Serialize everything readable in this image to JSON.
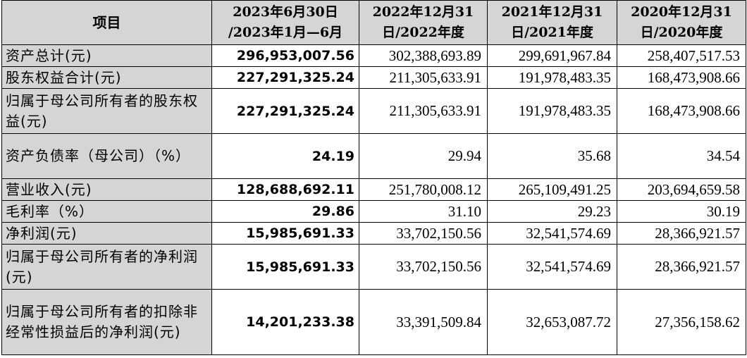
{
  "header": {
    "item": "项目",
    "col1_line1": "2023年6月30日",
    "col1_line2": "/2023年1月—6月",
    "col2_line1": "2022年12月31",
    "col2_line2": "日/2022年度",
    "col3_line1": "2021年12月31",
    "col3_line2": "日/2021年度",
    "col4_line1": "2020年12月31",
    "col4_line2": "日/2020年度"
  },
  "rows": [
    {
      "label": "资产总计(元)",
      "values": [
        "296,953,007.56",
        "302,388,693.89",
        "299,691,967.84",
        "258,407,517.53"
      ]
    },
    {
      "label": "股东权益合计(元)",
      "values": [
        "227,291,325.24",
        "211,305,633.91",
        "191,978,483.35",
        "168,473,908.66"
      ]
    },
    {
      "label": "归属于母公司所有者的股东权益(元)",
      "values": [
        "227,291,325.24",
        "211,305,633.91",
        "191,978,483.35",
        "168,473,908.66"
      ]
    },
    {
      "label": "资产负债率（母公司）（%）",
      "values": [
        "24.19",
        "29.94",
        "35.68",
        "34.54"
      ]
    },
    {
      "label": "营业收入(元)",
      "values": [
        "128,688,692.11",
        "251,780,008.12",
        "265,109,491.25",
        "203,694,659.58"
      ]
    },
    {
      "label": "毛利率（%）",
      "values": [
        "29.86",
        "31.10",
        "29.23",
        "30.19"
      ]
    },
    {
      "label": "净利润(元)",
      "values": [
        "15,985,691.33",
        "33,702,150.56",
        "32,541,574.69",
        "28,366,921.57"
      ]
    },
    {
      "label": "归属于母公司所有者的净利润(元)",
      "values": [
        "15,985,691.33",
        "33,702,150.56",
        "32,541,574.69",
        "28,366,921.57"
      ]
    },
    {
      "label": "归属于母公司所有者的扣除非经常性损益后的净利润(元)",
      "values": [
        "14,201,233.38",
        "33,391,509.84",
        "32,653,087.72",
        "27,356,158.62"
      ]
    }
  ]
}
